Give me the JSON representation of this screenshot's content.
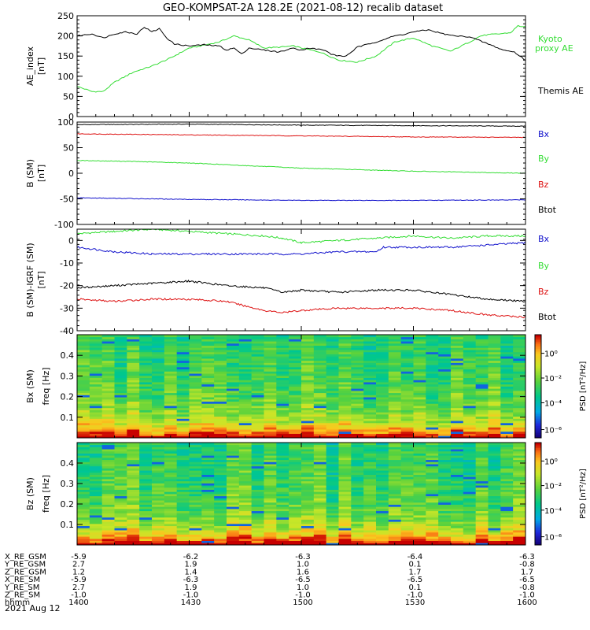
{
  "title": "GEO-KOMPSAT-2A 128.2E (2021-08-12) recalib dataset",
  "x_axis": {
    "ticks": [
      "1400",
      "1430",
      "1500",
      "1530",
      "1600"
    ],
    "hhmm_range": [
      1400,
      1600
    ]
  },
  "ephemeris": {
    "rows": [
      {
        "label": "X_RE_GSM",
        "values": [
          "-5.9",
          "-6.2",
          "-6.3",
          "-6.4",
          "-6.3"
        ]
      },
      {
        "label": "Y_RE_GSM",
        "values": [
          "2.7",
          "1.9",
          "1.0",
          "0.1",
          "-0.8"
        ]
      },
      {
        "label": "Z_RE_GSM",
        "values": [
          "1.2",
          "1.4",
          "1.6",
          "1.7",
          "1.7"
        ]
      },
      {
        "label": "X_RE_SM",
        "values": [
          "-5.9",
          "-6.3",
          "-6.5",
          "-6.5",
          "-6.5"
        ]
      },
      {
        "label": "Y_RE_SM",
        "values": [
          "2.7",
          "1.9",
          "1.0",
          "0.1",
          "-0.8"
        ]
      },
      {
        "label": "Z_RE_SM",
        "values": [
          "-1.0",
          "-1.0",
          "-1.0",
          "-1.0",
          "-1.0"
        ]
      },
      {
        "label": "hhmm",
        "values": [
          "1400",
          "1430",
          "1500",
          "1530",
          "1600"
        ]
      }
    ],
    "date_label": "2021 Aug 12"
  },
  "colors": {
    "black": "#000000",
    "green": "#33dd33",
    "red": "#dd1111",
    "blue": "#1111cc"
  },
  "chart_data": [
    {
      "type": "line",
      "panel": "ae",
      "ylabel": "AE_index",
      "yunit": "[nT]",
      "ylim": [
        0,
        250
      ],
      "yticks": [
        "0",
        "50",
        "100",
        "150",
        "200",
        "250"
      ],
      "series": [
        {
          "name": "Kyoto proxy AE",
          "color": "#33dd33",
          "x": [
            1400,
            1404,
            1407,
            1410,
            1415,
            1420,
            1425,
            1430,
            1433,
            1438,
            1442,
            1446,
            1450,
            1454,
            1458,
            1500,
            1505,
            1510,
            1515,
            1520,
            1525,
            1530,
            1535,
            1540,
            1545,
            1548,
            1550,
            1553,
            1556,
            1558,
            1600
          ],
          "y": [
            75,
            62,
            62,
            85,
            110,
            125,
            145,
            170,
            175,
            185,
            200,
            190,
            170,
            172,
            175,
            170,
            160,
            140,
            135,
            150,
            185,
            195,
            175,
            162,
            185,
            200,
            203,
            205,
            208,
            225,
            222
          ]
        },
        {
          "name": "Themis AE",
          "color": "#000000",
          "x": [
            1400,
            1404,
            1407,
            1410,
            1413,
            1416,
            1418,
            1420,
            1422,
            1424,
            1426,
            1430,
            1434,
            1438,
            1440,
            1442,
            1444,
            1446,
            1450,
            1454,
            1458,
            1500,
            1502,
            1506,
            1508,
            1510,
            1512,
            1515,
            1520,
            1525,
            1528,
            1530,
            1534,
            1538,
            1541,
            1545,
            1550,
            1554,
            1557,
            1600
          ],
          "y": [
            200,
            205,
            195,
            205,
            210,
            205,
            222,
            210,
            218,
            195,
            180,
            175,
            178,
            175,
            165,
            170,
            155,
            170,
            165,
            160,
            170,
            165,
            170,
            165,
            155,
            150,
            150,
            172,
            185,
            200,
            205,
            210,
            215,
            205,
            200,
            198,
            180,
            165,
            160,
            140
          ]
        }
      ]
    },
    {
      "type": "line",
      "panel": "b_sm",
      "ylabel": "B (SM)",
      "yunit": "[nT]",
      "ylim": [
        -100,
        100
      ],
      "yticks": [
        "-100",
        "-50",
        "0",
        "50",
        "100"
      ],
      "legend": [
        "Bx",
        "By",
        "Bz",
        "Btot"
      ],
      "series": [
        {
          "name": "Btot",
          "color": "#000000",
          "x": [
            1400,
            1430,
            1500,
            1530,
            1600
          ],
          "y": [
            95,
            96,
            94,
            93,
            92
          ]
        },
        {
          "name": "Bx",
          "color": "#dd1111",
          "x": [
            1400,
            1430,
            1500,
            1530,
            1600
          ],
          "y": [
            77,
            75,
            73,
            71,
            70
          ]
        },
        {
          "name": "By",
          "color": "#33dd33",
          "x": [
            1400,
            1415,
            1430,
            1445,
            1500,
            1515,
            1530,
            1545,
            1600
          ],
          "y": [
            25,
            23,
            20,
            15,
            10,
            7,
            4,
            2,
            0
          ]
        },
        {
          "name": "Bz",
          "color": "#1111cc",
          "x": [
            1400,
            1430,
            1500,
            1530,
            1600
          ],
          "y": [
            -48,
            -51,
            -53,
            -53,
            -52
          ]
        }
      ]
    },
    {
      "type": "line",
      "panel": "b_minus_igrf",
      "ylabel": "B (SM)-IGRF (SM)",
      "yunit": "[nT]",
      "ylim": [
        -40,
        5
      ],
      "yticks": [
        "-40",
        "-30",
        "-20",
        "-10",
        "0"
      ],
      "legend": [
        "Bx",
        "By",
        "Bz",
        "Btot"
      ],
      "series": [
        {
          "name": "By",
          "color": "#33dd33",
          "x": [
            1400,
            1410,
            1420,
            1430,
            1440,
            1450,
            1455,
            1500,
            1510,
            1520,
            1530,
            1540,
            1550,
            1600
          ],
          "y": [
            3,
            4,
            5,
            4,
            3,
            2,
            1,
            -1,
            0,
            1,
            2,
            1,
            2,
            2
          ]
        },
        {
          "name": "Bx",
          "color": "#1111cc",
          "x": [
            1400,
            1410,
            1420,
            1430,
            1440,
            1450,
            1500,
            1510,
            1520,
            1522,
            1530,
            1540,
            1550,
            1600
          ],
          "y": [
            -3,
            -5,
            -6,
            -6,
            -6,
            -6,
            -6,
            -5,
            -5,
            -3,
            -3,
            -3,
            -2,
            -1
          ]
        },
        {
          "name": "Btot",
          "color": "#000000",
          "x": [
            1400,
            1410,
            1420,
            1430,
            1440,
            1450,
            1455,
            1500,
            1510,
            1520,
            1530,
            1540,
            1550,
            1600
          ],
          "y": [
            -21,
            -20,
            -19,
            -18,
            -20,
            -21,
            -23,
            -22,
            -23,
            -22,
            -22,
            -24,
            -26,
            -27
          ]
        },
        {
          "name": "Bz",
          "color": "#dd1111",
          "x": [
            1400,
            1410,
            1420,
            1430,
            1440,
            1445,
            1450,
            1455,
            1500,
            1510,
            1520,
            1530,
            1540,
            1550,
            1600
          ],
          "y": [
            -26,
            -27,
            -26,
            -26,
            -27,
            -29,
            -31,
            -32,
            -31,
            -30,
            -30,
            -30,
            -31,
            -33,
            -34
          ]
        }
      ]
    },
    {
      "type": "heatmap",
      "panel": "bx_spec",
      "ylabel": "Bx (SM)",
      "yunit": "freq [Hz]",
      "ylim": [
        0,
        0.5
      ],
      "yticks": [
        "0.1",
        "0.2",
        "0.3",
        "0.4"
      ],
      "colorbar_label": "PSD [nT²/Hz]",
      "colorbar_ticks": [
        "10⁰",
        "10⁻²",
        "10⁻⁴",
        "10⁻⁶"
      ],
      "note": "Power decreases with frequency; strongest (red/orange) near 0 Hz, mostly green above 0.2 Hz."
    },
    {
      "type": "heatmap",
      "panel": "bz_spec",
      "ylabel": "Bz (SM)",
      "yunit": "freq [Hz]",
      "ylim": [
        0,
        0.5
      ],
      "yticks": [
        "0.1",
        "0.2",
        "0.3",
        "0.4"
      ],
      "colorbar_label": "PSD [nT²/Hz]",
      "colorbar_ticks": [
        "10⁰",
        "10⁻²",
        "10⁻⁴",
        "10⁻⁶"
      ],
      "note": "Power decreases with frequency; strongest near 0 Hz."
    }
  ]
}
